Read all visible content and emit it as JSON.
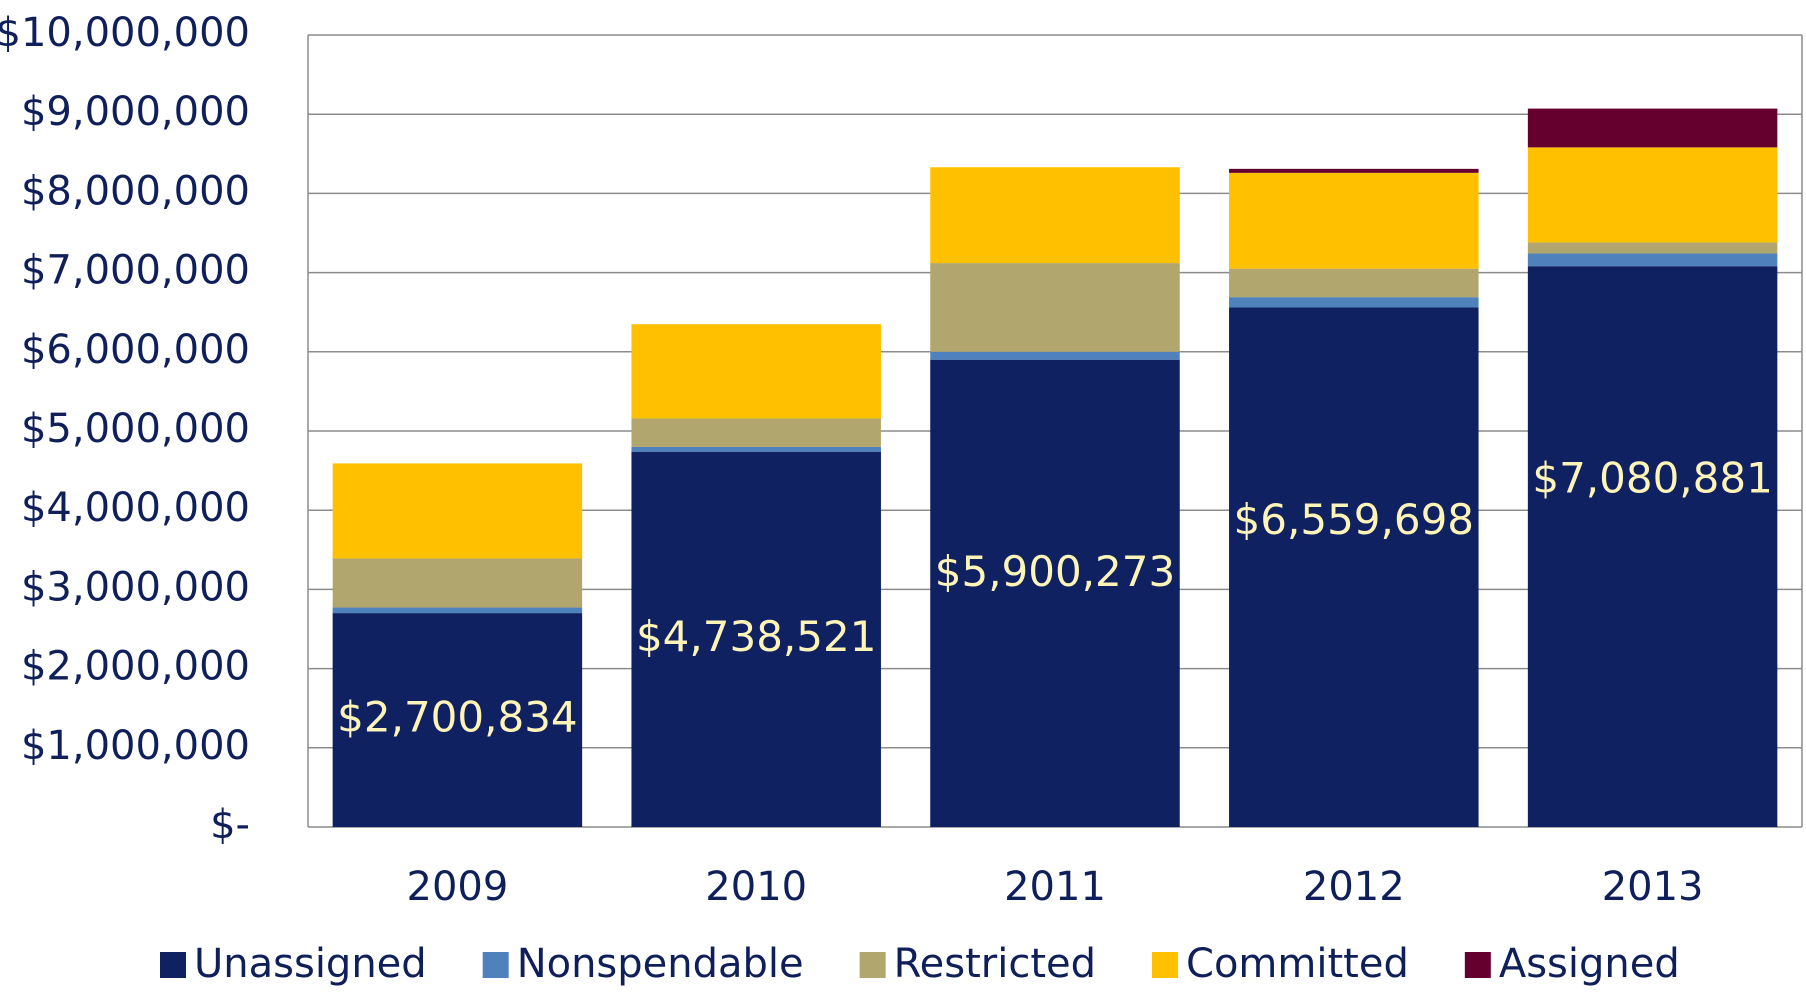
{
  "chart_data": {
    "type": "stacked_bar",
    "categories": [
      "2009",
      "2010",
      "2011",
      "2012",
      "2013"
    ],
    "series": [
      {
        "name": "Unassigned",
        "color": "#0f2160",
        "values": [
          2700834,
          4738521,
          5900273,
          6559698,
          7080881
        ],
        "value_labels": [
          "$2,700,834",
          "$4,738,521",
          "$5,900,273",
          "$6,559,698",
          "$7,080,881"
        ]
      },
      {
        "name": "Nonspendable",
        "color": "#4f81bd",
        "values": [
          70000,
          60000,
          100000,
          130000,
          160000
        ]
      },
      {
        "name": "Restricted",
        "color": "#b2a66f",
        "values": [
          620000,
          360000,
          1120000,
          360000,
          140000
        ]
      },
      {
        "name": "Committed",
        "color": "#ffc000",
        "values": [
          1200000,
          1190000,
          1210000,
          1210000,
          1200000
        ]
      },
      {
        "name": "Assigned",
        "color": "#65002e",
        "values": [
          0,
          0,
          0,
          50000,
          490000
        ]
      }
    ],
    "ylim": [
      0,
      10000000
    ],
    "yticks": [
      {
        "value": 0,
        "label": "$-"
      },
      {
        "value": 1000000,
        "label": "$1,000,000"
      },
      {
        "value": 2000000,
        "label": "$2,000,000"
      },
      {
        "value": 3000000,
        "label": "$3,000,000"
      },
      {
        "value": 4000000,
        "label": "$4,000,000"
      },
      {
        "value": 5000000,
        "label": "$5,000,000"
      },
      {
        "value": 6000000,
        "label": "$6,000,000"
      },
      {
        "value": 7000000,
        "label": "$7,000,000"
      },
      {
        "value": 8000000,
        "label": "$8,000,000"
      },
      {
        "value": 9000000,
        "label": "$9,000,000"
      },
      {
        "value": 10000000,
        "label": "$10,000,000"
      }
    ],
    "grid": true,
    "legend": "bottom"
  }
}
